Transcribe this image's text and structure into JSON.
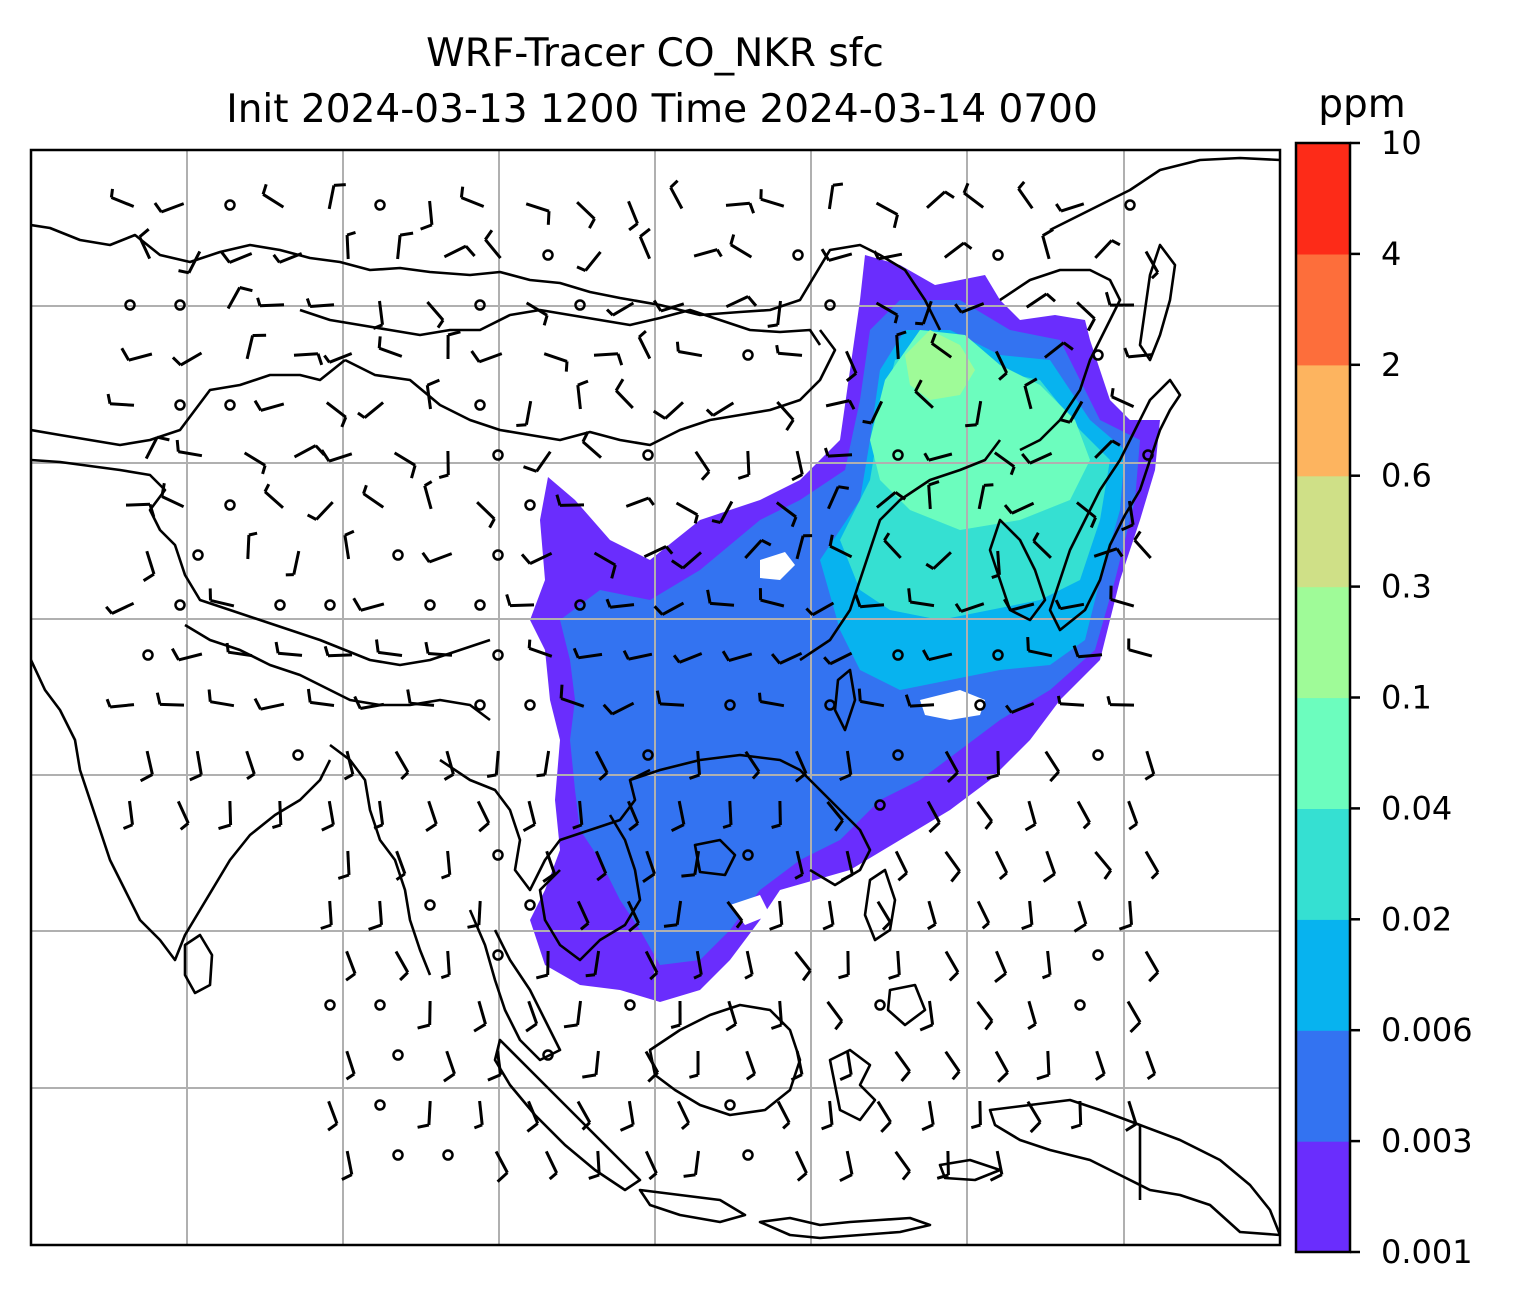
{
  "title": {
    "line1": "WRF-Tracer CO_NKR sfc",
    "line2": "Init 2024-03-13 1200 Time 2024-03-14 0700"
  },
  "colorbar": {
    "unit": "ppm",
    "ticks": [
      "0.001",
      "0.003",
      "0.006",
      "0.02",
      "0.04",
      "0.1",
      "0.3",
      "0.6",
      "2",
      "4",
      "10"
    ],
    "colors": [
      "#6a2dfd",
      "#3373f1",
      "#07b3ef",
      "#35e0d2",
      "#6cfdbe",
      "#9ffb98",
      "#cfe087",
      "#fdb45f",
      "#fd6e3b",
      "#fd2b18"
    ]
  },
  "map": {
    "field_colors": {
      "level1": "#6a2dfd",
      "level2": "#3373f1",
      "level3": "#07b3ef",
      "level4": "#35e0d2",
      "level5": "#6cfdbe",
      "level6": "#9ffb98"
    },
    "gridlines": true,
    "wind_barbs": true
  }
}
